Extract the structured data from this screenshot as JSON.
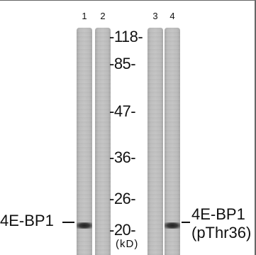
{
  "lane_numbers": [
    "1",
    "2",
    "3",
    "4"
  ],
  "markers": [
    "-118-",
    "-85-",
    "-47-",
    "-36-",
    "-26-",
    "-20-"
  ],
  "unit": "(kD)",
  "left_label": "4E-BP1",
  "right_label": {
    "line1": "4E-BP1",
    "line2": "(pThr36)"
  }
}
